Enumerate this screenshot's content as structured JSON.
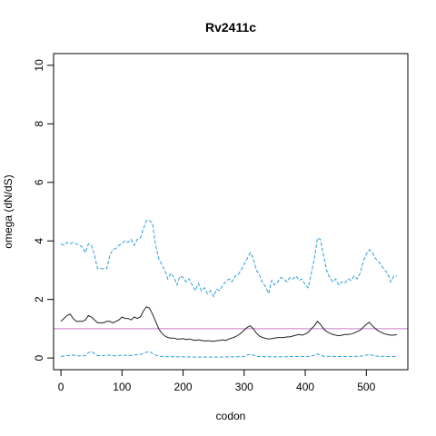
{
  "chart_data": {
    "type": "line",
    "title": "Rv2411c",
    "xlabel": "codon",
    "ylabel": "omega (dN/dS)",
    "xlim": [
      -12,
      568
    ],
    "ylim": [
      -0.4,
      10.4
    ],
    "xticks": [
      0,
      100,
      200,
      300,
      400,
      500
    ],
    "yticks": [
      0,
      2,
      4,
      6,
      8,
      10
    ],
    "grid": false,
    "reference_line": {
      "y": 1,
      "color": "#c77cc7"
    },
    "series": [
      {
        "style": "dashed",
        "color": "#2b9fd9",
        "points": [
          [
            0,
            3.9
          ],
          [
            5,
            3.85
          ],
          [
            10,
            3.95
          ],
          [
            15,
            3.9
          ],
          [
            20,
            3.95
          ],
          [
            25,
            3.9
          ],
          [
            30,
            3.85
          ],
          [
            35,
            3.8
          ],
          [
            40,
            3.6
          ],
          [
            45,
            3.9
          ],
          [
            50,
            3.85
          ],
          [
            55,
            3.5
          ],
          [
            60,
            3.05
          ],
          [
            65,
            3.05
          ],
          [
            70,
            3.05
          ],
          [
            75,
            3.05
          ],
          [
            80,
            3.5
          ],
          [
            85,
            3.7
          ],
          [
            90,
            3.75
          ],
          [
            95,
            3.85
          ],
          [
            100,
            3.9
          ],
          [
            105,
            4.0
          ],
          [
            110,
            3.95
          ],
          [
            115,
            4.05
          ],
          [
            120,
            3.85
          ],
          [
            125,
            4.05
          ],
          [
            130,
            4.1
          ],
          [
            135,
            4.4
          ],
          [
            140,
            4.7
          ],
          [
            145,
            4.7
          ],
          [
            150,
            4.6
          ],
          [
            155,
            3.85
          ],
          [
            160,
            3.4
          ],
          [
            165,
            3.2
          ],
          [
            170,
            3.0
          ],
          [
            175,
            2.7
          ],
          [
            180,
            2.9
          ],
          [
            185,
            2.75
          ],
          [
            190,
            2.5
          ],
          [
            195,
            2.8
          ],
          [
            200,
            2.75
          ],
          [
            205,
            2.6
          ],
          [
            210,
            2.7
          ],
          [
            215,
            2.5
          ],
          [
            220,
            2.3
          ],
          [
            225,
            2.55
          ],
          [
            230,
            2.3
          ],
          [
            235,
            2.4
          ],
          [
            240,
            2.2
          ],
          [
            245,
            2.3
          ],
          [
            250,
            2.1
          ],
          [
            255,
            2.35
          ],
          [
            260,
            2.3
          ],
          [
            265,
            2.5
          ],
          [
            270,
            2.6
          ],
          [
            275,
            2.7
          ],
          [
            280,
            2.6
          ],
          [
            285,
            2.8
          ],
          [
            290,
            2.85
          ],
          [
            295,
            3.0
          ],
          [
            300,
            3.2
          ],
          [
            305,
            3.4
          ],
          [
            310,
            3.6
          ],
          [
            315,
            3.4
          ],
          [
            320,
            3.0
          ],
          [
            325,
            2.85
          ],
          [
            330,
            2.55
          ],
          [
            335,
            2.45
          ],
          [
            340,
            2.2
          ],
          [
            345,
            2.65
          ],
          [
            350,
            2.5
          ],
          [
            355,
            2.6
          ],
          [
            360,
            2.75
          ],
          [
            365,
            2.7
          ],
          [
            370,
            2.6
          ],
          [
            375,
            2.75
          ],
          [
            380,
            2.7
          ],
          [
            385,
            2.8
          ],
          [
            390,
            2.65
          ],
          [
            395,
            2.7
          ],
          [
            400,
            2.5
          ],
          [
            405,
            2.4
          ],
          [
            410,
            2.9
          ],
          [
            415,
            3.4
          ],
          [
            420,
            4.1
          ],
          [
            425,
            4.05
          ],
          [
            430,
            3.5
          ],
          [
            435,
            3.0
          ],
          [
            440,
            2.75
          ],
          [
            445,
            2.6
          ],
          [
            450,
            2.7
          ],
          [
            455,
            2.5
          ],
          [
            460,
            2.6
          ],
          [
            465,
            2.55
          ],
          [
            470,
            2.7
          ],
          [
            475,
            2.65
          ],
          [
            480,
            2.8
          ],
          [
            485,
            2.7
          ],
          [
            490,
            2.9
          ],
          [
            495,
            3.3
          ],
          [
            500,
            3.55
          ],
          [
            505,
            3.7
          ],
          [
            510,
            3.6
          ],
          [
            515,
            3.4
          ],
          [
            520,
            3.3
          ],
          [
            525,
            3.15
          ],
          [
            530,
            3.0
          ],
          [
            535,
            2.9
          ],
          [
            540,
            2.6
          ],
          [
            545,
            2.8
          ],
          [
            550,
            2.8
          ]
        ]
      },
      {
        "style": "solid",
        "color": "#222222",
        "points": [
          [
            0,
            1.25
          ],
          [
            5,
            1.35
          ],
          [
            10,
            1.45
          ],
          [
            15,
            1.5
          ],
          [
            20,
            1.35
          ],
          [
            25,
            1.25
          ],
          [
            30,
            1.25
          ],
          [
            35,
            1.25
          ],
          [
            40,
            1.3
          ],
          [
            45,
            1.45
          ],
          [
            50,
            1.4
          ],
          [
            55,
            1.3
          ],
          [
            60,
            1.2
          ],
          [
            65,
            1.2
          ],
          [
            70,
            1.2
          ],
          [
            75,
            1.25
          ],
          [
            80,
            1.25
          ],
          [
            85,
            1.2
          ],
          [
            90,
            1.25
          ],
          [
            95,
            1.3
          ],
          [
            100,
            1.4
          ],
          [
            105,
            1.35
          ],
          [
            110,
            1.35
          ],
          [
            115,
            1.3
          ],
          [
            120,
            1.4
          ],
          [
            125,
            1.35
          ],
          [
            130,
            1.4
          ],
          [
            135,
            1.6
          ],
          [
            140,
            1.75
          ],
          [
            145,
            1.7
          ],
          [
            150,
            1.5
          ],
          [
            155,
            1.25
          ],
          [
            160,
            1.0
          ],
          [
            165,
            0.85
          ],
          [
            170,
            0.75
          ],
          [
            175,
            0.7
          ],
          [
            180,
            0.68
          ],
          [
            185,
            0.68
          ],
          [
            190,
            0.65
          ],
          [
            195,
            0.65
          ],
          [
            200,
            0.66
          ],
          [
            205,
            0.63
          ],
          [
            210,
            0.65
          ],
          [
            215,
            0.62
          ],
          [
            220,
            0.6
          ],
          [
            225,
            0.62
          ],
          [
            230,
            0.6
          ],
          [
            235,
            0.58
          ],
          [
            240,
            0.59
          ],
          [
            245,
            0.58
          ],
          [
            250,
            0.57
          ],
          [
            255,
            0.59
          ],
          [
            260,
            0.6
          ],
          [
            265,
            0.62
          ],
          [
            270,
            0.6
          ],
          [
            275,
            0.65
          ],
          [
            280,
            0.68
          ],
          [
            285,
            0.72
          ],
          [
            290,
            0.78
          ],
          [
            295,
            0.85
          ],
          [
            300,
            0.95
          ],
          [
            305,
            1.05
          ],
          [
            310,
            1.1
          ],
          [
            315,
            1.0
          ],
          [
            320,
            0.85
          ],
          [
            325,
            0.75
          ],
          [
            330,
            0.7
          ],
          [
            335,
            0.67
          ],
          [
            340,
            0.65
          ],
          [
            345,
            0.66
          ],
          [
            350,
            0.68
          ],
          [
            355,
            0.7
          ],
          [
            360,
            0.7
          ],
          [
            365,
            0.7
          ],
          [
            370,
            0.72
          ],
          [
            375,
            0.72
          ],
          [
            380,
            0.75
          ],
          [
            385,
            0.78
          ],
          [
            390,
            0.8
          ],
          [
            395,
            0.78
          ],
          [
            400,
            0.82
          ],
          [
            405,
            0.88
          ],
          [
            410,
            1.0
          ],
          [
            415,
            1.1
          ],
          [
            420,
            1.25
          ],
          [
            425,
            1.15
          ],
          [
            430,
            1.0
          ],
          [
            435,
            0.9
          ],
          [
            440,
            0.85
          ],
          [
            445,
            0.8
          ],
          [
            450,
            0.78
          ],
          [
            455,
            0.76
          ],
          [
            460,
            0.78
          ],
          [
            465,
            0.8
          ],
          [
            470,
            0.8
          ],
          [
            475,
            0.82
          ],
          [
            480,
            0.85
          ],
          [
            485,
            0.9
          ],
          [
            490,
            0.95
          ],
          [
            495,
            1.05
          ],
          [
            500,
            1.15
          ],
          [
            505,
            1.22
          ],
          [
            510,
            1.1
          ],
          [
            515,
            1.0
          ],
          [
            520,
            0.92
          ],
          [
            525,
            0.87
          ],
          [
            530,
            0.82
          ],
          [
            535,
            0.8
          ],
          [
            540,
            0.78
          ],
          [
            545,
            0.78
          ],
          [
            550,
            0.8
          ]
        ]
      },
      {
        "style": "dashed",
        "color": "#2b9fd9",
        "points": [
          [
            0,
            0.05
          ],
          [
            10,
            0.08
          ],
          [
            20,
            0.1
          ],
          [
            30,
            0.07
          ],
          [
            40,
            0.08
          ],
          [
            45,
            0.18
          ],
          [
            50,
            0.22
          ],
          [
            55,
            0.15
          ],
          [
            60,
            0.08
          ],
          [
            70,
            0.08
          ],
          [
            80,
            0.1
          ],
          [
            90,
            0.07
          ],
          [
            100,
            0.1
          ],
          [
            110,
            0.08
          ],
          [
            120,
            0.1
          ],
          [
            130,
            0.12
          ],
          [
            140,
            0.2
          ],
          [
            145,
            0.22
          ],
          [
            150,
            0.15
          ],
          [
            160,
            0.06
          ],
          [
            170,
            0.04
          ],
          [
            180,
            0.04
          ],
          [
            200,
            0.04
          ],
          [
            220,
            0.03
          ],
          [
            240,
            0.03
          ],
          [
            260,
            0.03
          ],
          [
            280,
            0.04
          ],
          [
            300,
            0.05
          ],
          [
            305,
            0.1
          ],
          [
            310,
            0.13
          ],
          [
            315,
            0.1
          ],
          [
            320,
            0.05
          ],
          [
            340,
            0.04
          ],
          [
            360,
            0.04
          ],
          [
            380,
            0.05
          ],
          [
            400,
            0.05
          ],
          [
            410,
            0.06
          ],
          [
            415,
            0.1
          ],
          [
            420,
            0.14
          ],
          [
            425,
            0.1
          ],
          [
            430,
            0.06
          ],
          [
            450,
            0.05
          ],
          [
            470,
            0.05
          ],
          [
            490,
            0.06
          ],
          [
            500,
            0.1
          ],
          [
            505,
            0.12
          ],
          [
            510,
            0.09
          ],
          [
            520,
            0.06
          ],
          [
            535,
            0.05
          ],
          [
            550,
            0.05
          ]
        ]
      }
    ]
  }
}
